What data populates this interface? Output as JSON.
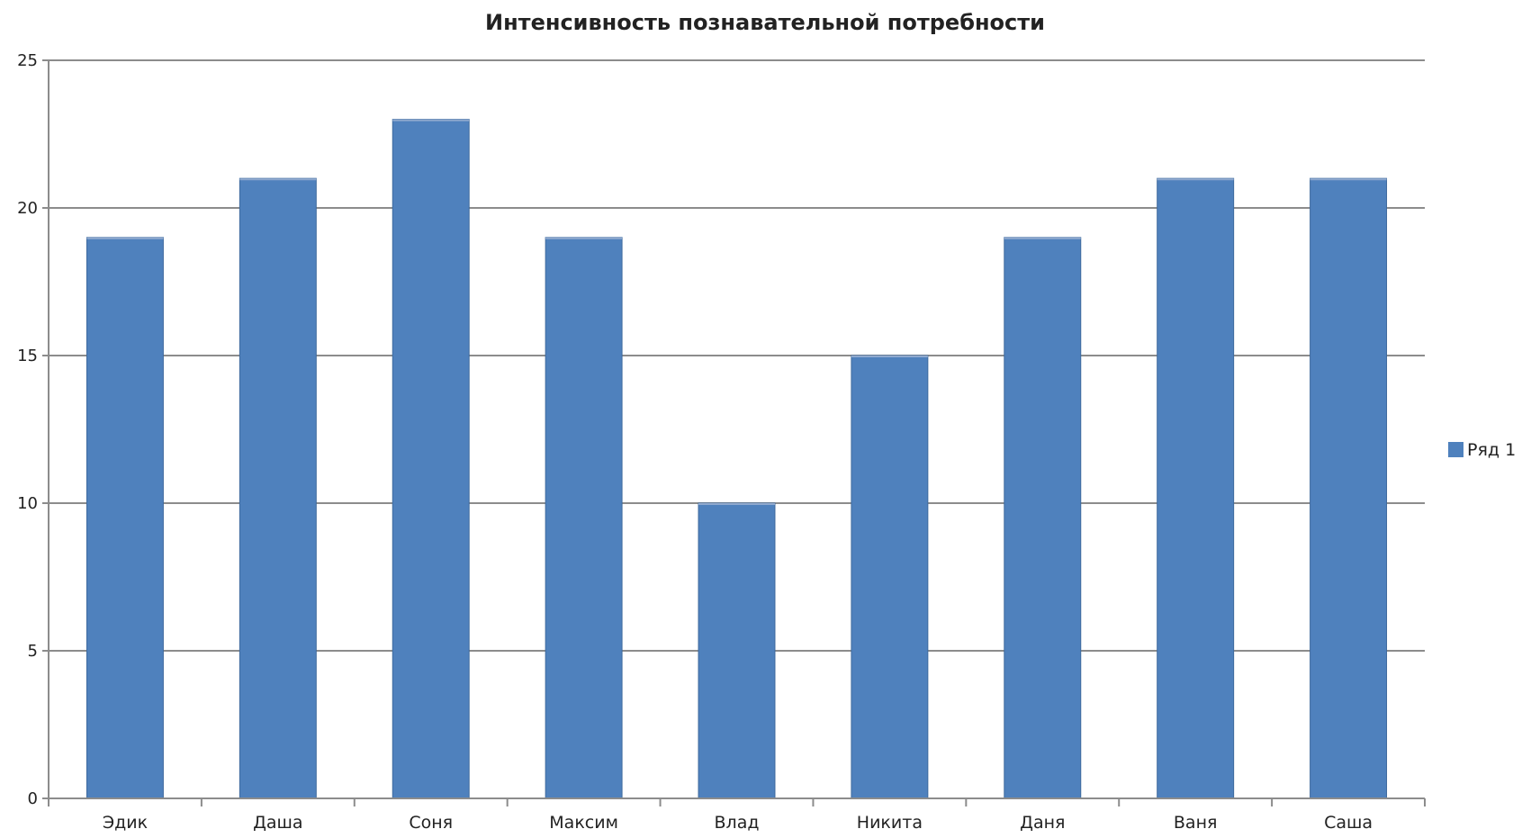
{
  "chart_data": {
    "type": "bar",
    "title": "Интенсивность познавательной потребности",
    "xlabel": "",
    "ylabel": "",
    "categories": [
      "Эдик",
      "Даша",
      "Соня",
      "Максим",
      "Влад",
      "Никита",
      "Даня",
      "Ваня",
      "Саша"
    ],
    "series": [
      {
        "name": "Ряд 1",
        "values": [
          19,
          21,
          23,
          19,
          10,
          15,
          19,
          21,
          21
        ],
        "color": "#4F81BD"
      }
    ],
    "ylim": [
      0,
      25
    ],
    "yticks": [
      0,
      5,
      10,
      15,
      20,
      25
    ],
    "grid": true,
    "legend_position": "right"
  }
}
